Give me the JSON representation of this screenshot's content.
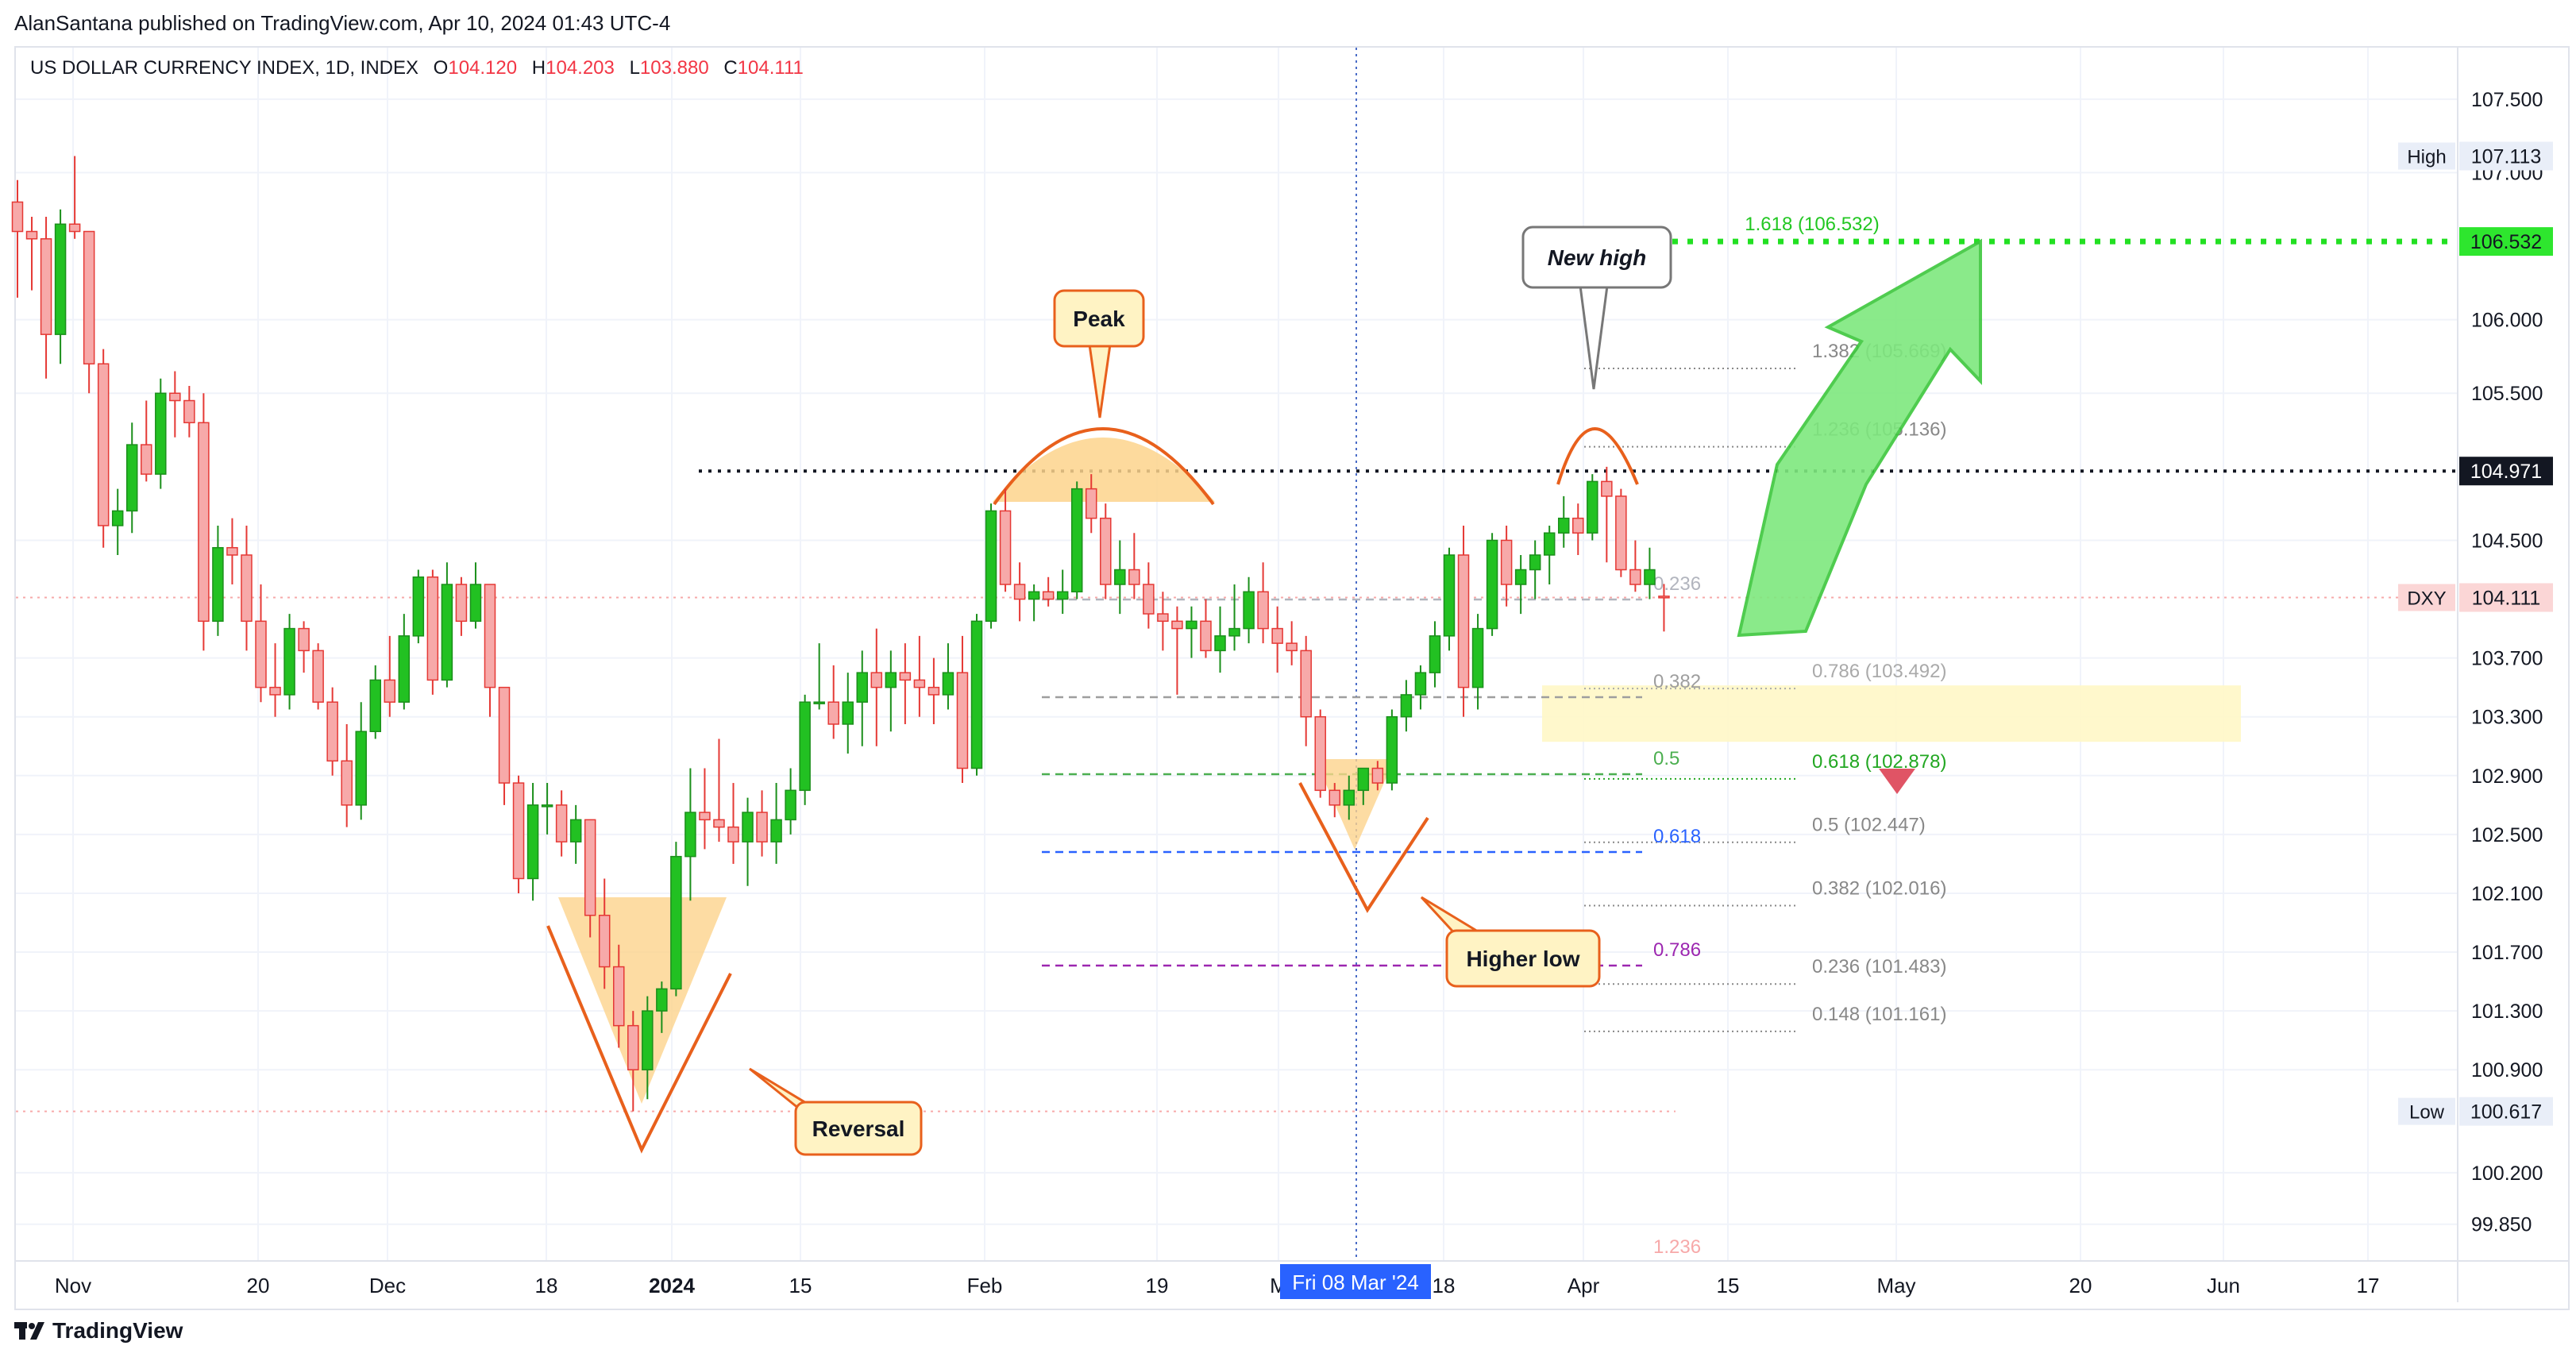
{
  "header": {
    "publisher_line": "AlanSantana published on TradingView.com, Apr 10, 2024 01:43 UTC-4"
  },
  "legend": {
    "symbol": "US DOLLAR CURRENCY INDEX, 1D, INDEX",
    "o_label": "O",
    "o": "104.120",
    "h_label": "H",
    "h": "104.203",
    "l_label": "L",
    "l": "103.880",
    "c_label": "C",
    "c": "104.111"
  },
  "brand": {
    "name": "TradingView",
    "logo_icon": "tradingview-logo-icon"
  },
  "chart_data": {
    "type": "candlestick",
    "title": "US DOLLAR CURRENCY INDEX, 1D, INDEX",
    "ylim": [
      99.6,
      107.85
    ],
    "y_ticks": [
      "107.500",
      "107.000",
      "106.000",
      "105.500",
      "104.500",
      "103.700",
      "103.300",
      "102.900",
      "102.500",
      "102.100",
      "101.700",
      "101.300",
      "100.900",
      "100.200",
      "99.850"
    ],
    "x_ticks": [
      {
        "label": "Nov",
        "bold": false
      },
      {
        "label": "20",
        "bold": false
      },
      {
        "label": "Dec",
        "bold": false
      },
      {
        "label": "18",
        "bold": false
      },
      {
        "label": "2024",
        "bold": true
      },
      {
        "label": "15",
        "bold": false
      },
      {
        "label": "Feb",
        "bold": false
      },
      {
        "label": "19",
        "bold": false
      },
      {
        "label": "M",
        "bold": false
      },
      {
        "label": "18",
        "bold": false
      },
      {
        "label": "Apr",
        "bold": false
      },
      {
        "label": "15",
        "bold": false
      },
      {
        "label": "May",
        "bold": false
      },
      {
        "label": "20",
        "bold": false
      },
      {
        "label": "Jun",
        "bold": false
      },
      {
        "label": "17",
        "bold": false
      }
    ],
    "crosshair_date": "Fri 08 Mar '24",
    "price_labels": {
      "high": {
        "name": "High",
        "value": "107.113"
      },
      "target": {
        "value": "106.532"
      },
      "level": {
        "value": "104.971"
      },
      "current": {
        "name": "DXY",
        "value": "104.111"
      },
      "low": {
        "name": "Low",
        "value": "100.617"
      }
    },
    "colors": {
      "up": "#22c122",
      "down": "#f7a9a9",
      "down_border": "#e53935",
      "wick": "#555555"
    },
    "candles": [
      [
        106.8,
        106.95,
        106.15,
        106.6
      ],
      [
        106.6,
        106.7,
        106.2,
        106.55
      ],
      [
        106.55,
        106.7,
        105.6,
        105.9
      ],
      [
        105.9,
        106.75,
        105.7,
        106.65
      ],
      [
        106.65,
        107.113,
        106.55,
        106.6
      ],
      [
        106.6,
        106.6,
        105.5,
        105.7
      ],
      [
        105.7,
        105.8,
        104.45,
        104.6
      ],
      [
        104.6,
        104.85,
        104.4,
        104.7
      ],
      [
        104.7,
        105.3,
        104.55,
        105.15
      ],
      [
        105.15,
        105.45,
        104.9,
        104.95
      ],
      [
        104.95,
        105.6,
        104.85,
        105.5
      ],
      [
        105.5,
        105.65,
        105.2,
        105.45
      ],
      [
        105.45,
        105.55,
        105.2,
        105.3
      ],
      [
        105.3,
        105.5,
        103.75,
        103.95
      ],
      [
        103.95,
        104.6,
        103.85,
        104.45
      ],
      [
        104.45,
        104.65,
        104.2,
        104.4
      ],
      [
        104.4,
        104.6,
        103.75,
        103.95
      ],
      [
        103.95,
        104.2,
        103.4,
        103.5
      ],
      [
        103.5,
        103.8,
        103.3,
        103.45
      ],
      [
        103.45,
        104.0,
        103.35,
        103.9
      ],
      [
        103.9,
        103.95,
        103.6,
        103.75
      ],
      [
        103.75,
        103.8,
        103.35,
        103.4
      ],
      [
        103.4,
        103.5,
        102.9,
        103.0
      ],
      [
        103.0,
        103.25,
        102.55,
        102.7
      ],
      [
        102.7,
        103.4,
        102.6,
        103.2
      ],
      [
        103.2,
        103.65,
        103.15,
        103.55
      ],
      [
        103.55,
        103.85,
        103.3,
        103.4
      ],
      [
        103.4,
        104.0,
        103.35,
        103.85
      ],
      [
        103.85,
        104.3,
        103.8,
        104.25
      ],
      [
        104.25,
        104.3,
        103.45,
        103.55
      ],
      [
        103.55,
        104.35,
        103.5,
        104.2
      ],
      [
        104.2,
        104.25,
        103.85,
        103.95
      ],
      [
        103.95,
        104.35,
        103.9,
        104.2
      ],
      [
        104.2,
        104.2,
        103.3,
        103.5
      ],
      [
        103.5,
        103.5,
        102.7,
        102.85
      ],
      [
        102.85,
        102.9,
        102.1,
        102.2
      ],
      [
        102.2,
        102.85,
        102.05,
        102.7
      ],
      [
        102.7,
        102.85,
        102.5,
        102.7
      ],
      [
        102.7,
        102.8,
        102.35,
        102.45
      ],
      [
        102.45,
        102.7,
        102.3,
        102.6
      ],
      [
        102.6,
        102.6,
        101.8,
        101.95
      ],
      [
        101.95,
        102.2,
        101.45,
        101.6
      ],
      [
        101.6,
        101.75,
        101.05,
        101.2
      ],
      [
        101.2,
        101.3,
        100.617,
        100.9
      ],
      [
        100.9,
        101.4,
        100.7,
        101.3
      ],
      [
        101.3,
        101.5,
        101.15,
        101.45
      ],
      [
        101.45,
        102.45,
        101.4,
        102.35
      ],
      [
        102.35,
        102.95,
        102.05,
        102.65
      ],
      [
        102.65,
        102.95,
        102.4,
        102.6
      ],
      [
        102.6,
        103.15,
        102.45,
        102.55
      ],
      [
        102.55,
        102.85,
        102.3,
        102.45
      ],
      [
        102.45,
        102.75,
        102.15,
        102.65
      ],
      [
        102.65,
        102.8,
        102.35,
        102.45
      ],
      [
        102.45,
        102.85,
        102.3,
        102.6
      ],
      [
        102.6,
        102.95,
        102.5,
        102.8
      ],
      [
        102.8,
        103.45,
        102.7,
        103.4
      ],
      [
        103.4,
        103.8,
        103.35,
        103.4
      ],
      [
        103.4,
        103.65,
        103.15,
        103.25
      ],
      [
        103.25,
        103.6,
        103.05,
        103.4
      ],
      [
        103.4,
        103.75,
        103.1,
        103.6
      ],
      [
        103.6,
        103.9,
        103.1,
        103.5
      ],
      [
        103.5,
        103.75,
        103.2,
        103.6
      ],
      [
        103.6,
        103.8,
        103.25,
        103.55
      ],
      [
        103.55,
        103.85,
        103.3,
        103.5
      ],
      [
        103.5,
        103.7,
        103.25,
        103.45
      ],
      [
        103.45,
        103.8,
        103.35,
        103.6
      ],
      [
        103.6,
        103.85,
        102.85,
        102.95
      ],
      [
        102.95,
        104.0,
        102.9,
        103.95
      ],
      [
        103.95,
        104.75,
        103.9,
        104.7
      ],
      [
        104.7,
        104.85,
        104.15,
        104.2
      ],
      [
        104.2,
        104.35,
        103.95,
        104.1
      ],
      [
        104.1,
        104.2,
        103.95,
        104.15
      ],
      [
        104.15,
        104.25,
        104.05,
        104.1
      ],
      [
        104.1,
        104.3,
        104.0,
        104.15
      ],
      [
        104.15,
        104.9,
        104.1,
        104.85
      ],
      [
        104.85,
        104.95,
        104.55,
        104.65
      ],
      [
        104.65,
        104.75,
        104.1,
        104.2
      ],
      [
        104.2,
        104.5,
        104.0,
        104.3
      ],
      [
        104.3,
        104.55,
        104.1,
        104.2
      ],
      [
        104.2,
        104.35,
        103.9,
        104.0
      ],
      [
        104.0,
        104.15,
        103.75,
        103.95
      ],
      [
        103.95,
        104.05,
        103.45,
        103.9
      ],
      [
        103.9,
        104.05,
        103.7,
        103.95
      ],
      [
        103.95,
        104.1,
        103.7,
        103.75
      ],
      [
        103.75,
        104.05,
        103.6,
        103.85
      ],
      [
        103.85,
        104.2,
        103.75,
        103.9
      ],
      [
        103.9,
        104.25,
        103.8,
        104.15
      ],
      [
        104.15,
        104.35,
        103.8,
        103.9
      ],
      [
        103.9,
        104.05,
        103.6,
        103.8
      ],
      [
        103.8,
        103.95,
        103.65,
        103.75
      ],
      [
        103.75,
        103.85,
        103.1,
        103.3
      ],
      [
        103.3,
        103.35,
        102.75,
        102.8
      ],
      [
        102.8,
        102.85,
        102.617,
        102.7
      ],
      [
        102.7,
        102.9,
        102.6,
        102.8
      ],
      [
        102.8,
        102.95,
        102.7,
        102.95
      ],
      [
        102.95,
        103.0,
        102.8,
        102.85
      ],
      [
        102.85,
        103.35,
        102.8,
        103.3
      ],
      [
        103.3,
        103.55,
        103.2,
        103.45
      ],
      [
        103.45,
        103.65,
        103.35,
        103.6
      ],
      [
        103.6,
        103.95,
        103.5,
        103.85
      ],
      [
        103.85,
        104.45,
        103.75,
        104.4
      ],
      [
        104.4,
        104.6,
        103.3,
        103.5
      ],
      [
        103.5,
        104.0,
        103.35,
        103.9
      ],
      [
        103.9,
        104.55,
        103.85,
        104.5
      ],
      [
        104.5,
        104.6,
        104.05,
        104.2
      ],
      [
        104.2,
        104.4,
        104.0,
        104.3
      ],
      [
        104.3,
        104.5,
        104.1,
        104.4
      ],
      [
        104.4,
        104.6,
        104.2,
        104.55
      ],
      [
        104.55,
        104.8,
        104.45,
        104.65
      ],
      [
        104.65,
        104.75,
        104.4,
        104.55
      ],
      [
        104.55,
        104.95,
        104.5,
        104.9
      ],
      [
        104.9,
        105.0,
        104.35,
        104.8
      ],
      [
        104.8,
        104.85,
        104.25,
        104.3
      ],
      [
        104.3,
        104.5,
        104.15,
        104.2
      ],
      [
        104.2,
        104.45,
        104.1,
        104.3
      ],
      [
        104.12,
        104.203,
        103.88,
        104.111
      ]
    ],
    "fib_main": [
      {
        "label": "1.618 (106.532)",
        "ratio": 1.618,
        "value": 106.532,
        "color": "#22c722",
        "dashed": true
      },
      {
        "label": "1.382 (105.669)",
        "ratio": 1.382,
        "value": 105.669,
        "color": "#888888"
      },
      {
        "label": "1.236 (105.136)",
        "ratio": 1.236,
        "value": 105.136,
        "color": "#888888"
      },
      {
        "label": "0.786 (103.492)",
        "ratio": 0.786,
        "value": 103.492,
        "color": "#aaaaaa"
      },
      {
        "label": "0.618 (102.878)",
        "ratio": 0.618,
        "value": 102.878,
        "color": "#22a722"
      },
      {
        "label": "0.5 (102.447)",
        "ratio": 0.5,
        "value": 102.447,
        "color": "#888888"
      },
      {
        "label": "0.382 (102.016)",
        "ratio": 0.382,
        "value": 102.016,
        "color": "#888888"
      },
      {
        "label": "0.236 (101.483)",
        "ratio": 0.236,
        "value": 101.483,
        "color": "#888888"
      },
      {
        "label": "0.148 (101.161)",
        "ratio": 0.148,
        "value": 101.161,
        "color": "#888888"
      }
    ],
    "fib_retracement": [
      {
        "label": "0.236",
        "ratio": 0.236,
        "color": "#b2b5be"
      },
      {
        "label": "0.382",
        "ratio": 0.382,
        "color": "#9e9e9e"
      },
      {
        "label": "0.5",
        "ratio": 0.5,
        "color": "#4caf50"
      },
      {
        "label": "0.618",
        "ratio": 0.618,
        "color": "#2962ff"
      },
      {
        "label": "0.786",
        "ratio": 0.786,
        "color": "#9c27b0"
      },
      {
        "label": "1.236",
        "ratio": 1.236,
        "color": "#f7a9a9"
      }
    ],
    "annotations": {
      "peak": "Peak",
      "new_high": "New high",
      "reversal": "Reversal",
      "higher_low": "Higher low"
    }
  }
}
